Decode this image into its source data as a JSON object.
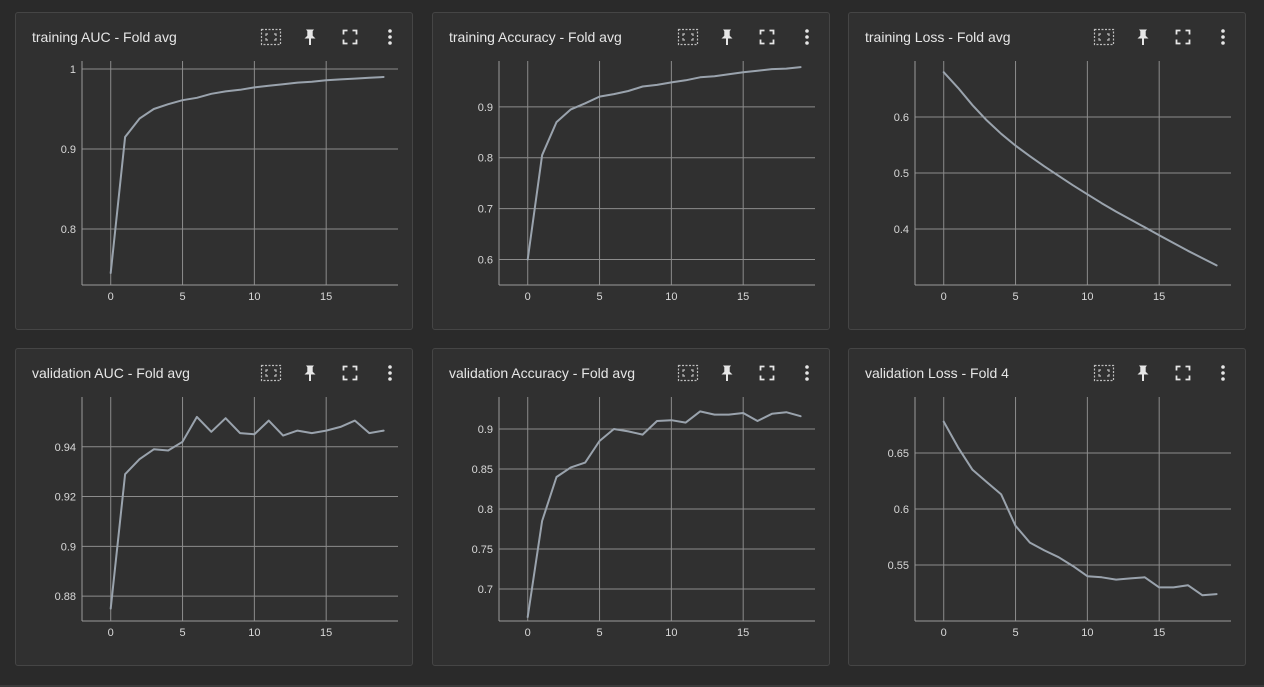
{
  "icons": {
    "fit": "fit-domain-icon",
    "pin": "pin-icon",
    "fullscreen": "fullscreen-icon",
    "menu": "more-vert-icon"
  },
  "colors": {
    "line": "#9aa3ad",
    "grid": "#8c8c8c",
    "card": "#303030",
    "text": "#d8d8d8"
  },
  "chart_data": [
    {
      "type": "line",
      "title": "training AUC - Fold avg",
      "xlim": [
        -2,
        20
      ],
      "ylim": [
        0.73,
        1.01
      ],
      "xticks": [
        0,
        5,
        10,
        15
      ],
      "xtick_labels": [
        "0",
        "5",
        "10",
        "15"
      ],
      "yticks": [
        0.8,
        0.9,
        1
      ],
      "ytick_labels": [
        "0.8",
        "0.9",
        "1"
      ],
      "grid": true,
      "x": [
        0,
        1,
        2,
        3,
        4,
        5,
        6,
        7,
        8,
        9,
        10,
        11,
        12,
        13,
        14,
        15,
        16,
        17,
        18,
        19
      ],
      "values": [
        0.745,
        0.915,
        0.938,
        0.95,
        0.956,
        0.961,
        0.964,
        0.969,
        0.972,
        0.974,
        0.977,
        0.979,
        0.981,
        0.983,
        0.984,
        0.986,
        0.987,
        0.988,
        0.989,
        0.99
      ]
    },
    {
      "type": "line",
      "title": "training Accuracy - Fold avg",
      "xlim": [
        -2,
        20
      ],
      "ylim": [
        0.55,
        0.99
      ],
      "xticks": [
        0,
        5,
        10,
        15
      ],
      "xtick_labels": [
        "0",
        "5",
        "10",
        "15"
      ],
      "yticks": [
        0.6,
        0.7,
        0.8,
        0.9
      ],
      "ytick_labels": [
        "0.6",
        "0.7",
        "0.8",
        "0.9"
      ],
      "grid": true,
      "x": [
        0,
        1,
        2,
        3,
        4,
        5,
        6,
        7,
        8,
        9,
        10,
        11,
        12,
        13,
        14,
        15,
        16,
        17,
        18,
        19
      ],
      "values": [
        0.6,
        0.805,
        0.87,
        0.895,
        0.907,
        0.92,
        0.925,
        0.931,
        0.94,
        0.943,
        0.948,
        0.952,
        0.958,
        0.96,
        0.964,
        0.968,
        0.971,
        0.974,
        0.975,
        0.978
      ]
    },
    {
      "type": "line",
      "title": "training Loss - Fold avg",
      "xlim": [
        -2,
        20
      ],
      "ylim": [
        0.3,
        0.7
      ],
      "xticks": [
        0,
        5,
        10,
        15
      ],
      "xtick_labels": [
        "0",
        "5",
        "10",
        "15"
      ],
      "yticks": [
        0.4,
        0.5,
        0.6
      ],
      "ytick_labels": [
        "0.4",
        "0.5",
        "0.6"
      ],
      "grid": true,
      "x": [
        0,
        1,
        2,
        3,
        4,
        5,
        6,
        7,
        8,
        9,
        10,
        11,
        12,
        13,
        14,
        15,
        16,
        17,
        18,
        19
      ],
      "values": [
        0.68,
        0.652,
        0.621,
        0.594,
        0.57,
        0.549,
        0.53,
        0.512,
        0.495,
        0.478,
        0.462,
        0.446,
        0.431,
        0.417,
        0.403,
        0.389,
        0.375,
        0.361,
        0.348,
        0.335
      ]
    },
    {
      "type": "line",
      "title": "validation AUC - Fold avg",
      "xlim": [
        -2,
        20
      ],
      "ylim": [
        0.87,
        0.96
      ],
      "xticks": [
        0,
        5,
        10,
        15
      ],
      "xtick_labels": [
        "0",
        "5",
        "10",
        "15"
      ],
      "yticks": [
        0.88,
        0.9,
        0.92,
        0.94
      ],
      "ytick_labels": [
        "0.88",
        "0.9",
        "0.92",
        "0.94"
      ],
      "grid": true,
      "x": [
        0,
        1,
        2,
        3,
        4,
        5,
        6,
        7,
        8,
        9,
        10,
        11,
        12,
        13,
        14,
        15,
        16,
        17,
        18,
        19
      ],
      "values": [
        0.875,
        0.929,
        0.935,
        0.939,
        0.9385,
        0.942,
        0.952,
        0.946,
        0.9515,
        0.9455,
        0.945,
        0.9505,
        0.9445,
        0.9465,
        0.9455,
        0.9465,
        0.948,
        0.9505,
        0.9455,
        0.9465
      ]
    },
    {
      "type": "line",
      "title": "validation Accuracy - Fold avg",
      "xlim": [
        -2,
        20
      ],
      "ylim": [
        0.66,
        0.94
      ],
      "xticks": [
        0,
        5,
        10,
        15
      ],
      "xtick_labels": [
        "0",
        "5",
        "10",
        "15"
      ],
      "yticks": [
        0.7,
        0.75,
        0.8,
        0.85,
        0.9
      ],
      "ytick_labels": [
        "0.7",
        "0.75",
        "0.8",
        "0.85",
        "0.9"
      ],
      "grid": true,
      "x": [
        0,
        1,
        2,
        3,
        4,
        5,
        6,
        7,
        8,
        9,
        10,
        11,
        12,
        13,
        14,
        15,
        16,
        17,
        18,
        19
      ],
      "values": [
        0.665,
        0.785,
        0.84,
        0.852,
        0.858,
        0.885,
        0.9,
        0.897,
        0.893,
        0.91,
        0.911,
        0.908,
        0.922,
        0.918,
        0.918,
        0.92,
        0.91,
        0.919,
        0.921,
        0.916
      ]
    },
    {
      "type": "line",
      "title": "validation Loss - Fold 4",
      "xlim": [
        -2,
        20
      ],
      "ylim": [
        0.5,
        0.7
      ],
      "xticks": [
        0,
        5,
        10,
        15
      ],
      "xtick_labels": [
        "0",
        "5",
        "10",
        "15"
      ],
      "yticks": [
        0.55,
        0.6,
        0.65
      ],
      "ytick_labels": [
        "0.55",
        "0.6",
        "0.65"
      ],
      "grid": true,
      "x": [
        0,
        1,
        2,
        3,
        4,
        5,
        6,
        7,
        8,
        9,
        10,
        11,
        12,
        13,
        14,
        15,
        16,
        17,
        18,
        19
      ],
      "values": [
        0.678,
        0.655,
        0.635,
        0.624,
        0.613,
        0.585,
        0.57,
        0.563,
        0.557,
        0.549,
        0.54,
        0.539,
        0.537,
        0.538,
        0.539,
        0.53,
        0.53,
        0.532,
        0.523,
        0.524
      ]
    }
  ]
}
